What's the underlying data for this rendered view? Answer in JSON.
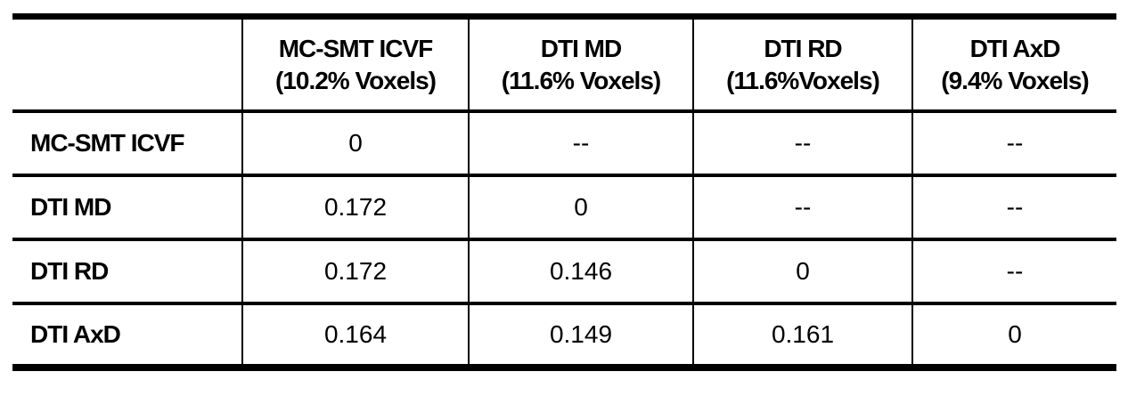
{
  "chart_data": {
    "type": "table",
    "title": "",
    "columns": [
      "",
      "MC-SMT ICVF (10.2% Voxels)",
      "DTI MD (11.6% Voxels)",
      "DTI RD (11.6%Voxels)",
      "DTI AxD (9.4% Voxels)"
    ],
    "rows": [
      [
        "MC-SMT ICVF",
        "0",
        "--",
        "--",
        "--"
      ],
      [
        "DTI MD",
        "0.172",
        "0",
        "--",
        "--"
      ],
      [
        "DTI RD",
        "0.172",
        "0.146",
        "0",
        "--"
      ],
      [
        "DTI AxD",
        "0.164",
        "0.149",
        "0.161",
        "0"
      ]
    ],
    "layout_hints": {
      "grid": "horizontal rules thick top/bottom, thin internal; vertical rules internal only",
      "value_alignment": "center",
      "row_label_alignment": "left"
    }
  },
  "header_lines": [
    {
      "line1": "MC-SMT ICVF",
      "line2": "(10.2% Voxels)"
    },
    {
      "line1": "DTI MD",
      "line2": "(11.6% Voxels)"
    },
    {
      "line1": "DTI RD",
      "line2": "(11.6%Voxels)"
    },
    {
      "line1": "DTI AxD",
      "line2": "(9.4% Voxels)"
    }
  ],
  "colors": {
    "text": "#000000",
    "border": "#000000",
    "background": "#ffffff"
  }
}
